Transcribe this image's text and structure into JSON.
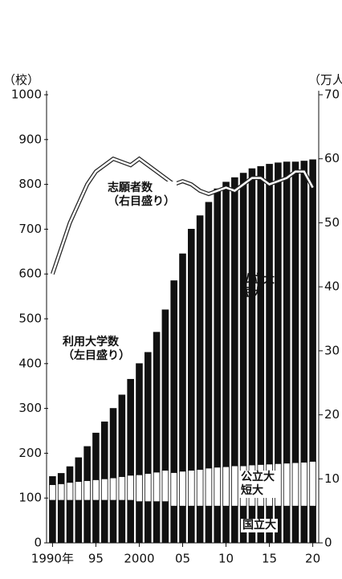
{
  "chart_data": {
    "type": "bar",
    "stacked": true,
    "ylabel": "（校）",
    "y2label": "（万人）",
    "categories": [
      "1990年",
      null,
      null,
      null,
      null,
      "95",
      null,
      null,
      null,
      null,
      "2000",
      null,
      null,
      null,
      null,
      "05",
      null,
      null,
      null,
      null,
      "10",
      null,
      null,
      null,
      null,
      "15",
      null,
      null,
      null,
      null,
      "20"
    ],
    "series": [
      {
        "name": "国立大",
        "color": "#111111",
        "values": [
          95,
          95,
          95,
          95,
          95,
          95,
          95,
          95,
          95,
          95,
          92,
          92,
          92,
          92,
          82,
          82,
          82,
          82,
          82,
          82,
          82,
          82,
          82,
          82,
          82,
          82,
          82,
          82,
          82,
          82,
          82
        ]
      },
      {
        "name": "公立大\n短大",
        "color": "#ffffff",
        "values": [
          35,
          37,
          40,
          42,
          44,
          46,
          48,
          50,
          53,
          56,
          60,
          63,
          66,
          70,
          75,
          78,
          80,
          82,
          85,
          87,
          88,
          90,
          90,
          92,
          93,
          94,
          95,
          96,
          97,
          98,
          100
        ]
      },
      {
        "name": "私立大\n短大",
        "color": "#111111",
        "values": [
          18,
          23,
          35,
          53,
          76,
          104,
          127,
          155,
          182,
          214,
          248,
          270,
          312,
          358,
          428,
          485,
          538,
          566,
          593,
          621,
          635,
          643,
          653,
          661,
          665,
          669,
          671,
          672,
          671,
          672,
          673
        ]
      },
      {
        "name": "志願者数\n（右目盛り）",
        "type": "line",
        "axis": "y2",
        "color": "#ffffff",
        "values": [
          42,
          46,
          50,
          53,
          56,
          58,
          59,
          60,
          59.5,
          59,
          60,
          59,
          58,
          57,
          56,
          56.5,
          56,
          55,
          54.5,
          55,
          55.5,
          55,
          56,
          57,
          57,
          56,
          56.5,
          57,
          58,
          58,
          55.5
        ]
      }
    ],
    "annotations": [
      "利用大学数\n（左目盛り）"
    ],
    "ylim": [
      0,
      1000
    ],
    "yticks": [
      0,
      100,
      200,
      300,
      400,
      500,
      600,
      700,
      800,
      900,
      1000
    ],
    "y2lim": [
      0,
      70
    ],
    "y2ticks": [
      0,
      10,
      20,
      30,
      40,
      50,
      60,
      70
    ]
  }
}
